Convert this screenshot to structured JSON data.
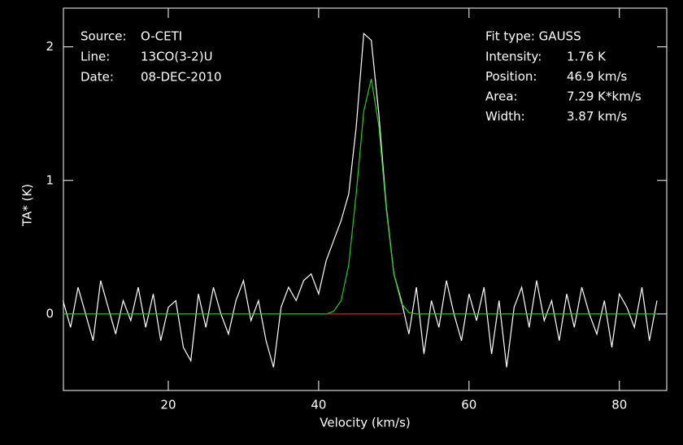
{
  "chart_data": {
    "type": "line",
    "xlabel": "Velocity (km/s)",
    "ylabel": "TA* (K)",
    "annotations_left": [
      [
        "Source:",
        "O-CETI"
      ],
      [
        "Line:",
        "13CO(3-2)U"
      ],
      [
        "Date:",
        "08-DEC-2010"
      ]
    ],
    "annotations_right_title": "Fit type: GAUSS",
    "annotations_right": [
      [
        "Intensity:",
        "1.76 K"
      ],
      [
        "Position:",
        "46.9 km/s"
      ],
      [
        "Area:",
        "7.29 K*km/s"
      ],
      [
        "Width:",
        "3.87 km/s"
      ]
    ],
    "xlim": [
      6.05,
      86.3
    ],
    "ylim": [
      -0.573,
      2.29
    ],
    "xticks": [
      20,
      40,
      60,
      80
    ],
    "yticks": [
      0,
      1,
      2
    ],
    "series": [
      {
        "color": "#ffffff",
        "x": [
          6,
          7,
          8,
          9,
          10,
          11,
          12,
          13,
          14,
          15,
          16,
          17,
          18,
          19,
          20,
          21,
          22,
          23,
          24,
          25,
          26,
          27,
          28,
          29,
          30,
          31,
          32,
          33,
          34,
          35,
          36,
          37,
          38,
          39,
          40,
          41,
          42,
          43,
          44,
          45,
          46,
          47,
          48,
          49,
          50,
          51,
          52,
          53,
          54,
          55,
          56,
          57,
          58,
          59,
          60,
          61,
          62,
          63,
          64,
          65,
          66,
          67,
          68,
          69,
          70,
          71,
          72,
          73,
          74,
          75,
          76,
          77,
          78,
          79,
          80,
          81,
          82,
          83,
          84,
          85
        ],
        "values": [
          0.1,
          -0.1,
          0.2,
          0.0,
          -0.2,
          0.25,
          0.05,
          -0.15,
          0.1,
          -0.05,
          0.2,
          -0.1,
          0.15,
          -0.2,
          0.05,
          0.1,
          -0.25,
          -0.35,
          0.15,
          -0.1,
          0.2,
          0.0,
          -0.15,
          0.1,
          0.25,
          -0.05,
          0.1,
          -0.2,
          -0.4,
          0.05,
          0.2,
          0.1,
          0.25,
          0.3,
          0.15,
          0.4,
          0.55,
          0.7,
          0.9,
          1.4,
          2.1,
          2.05,
          1.5,
          0.8,
          0.3,
          0.1,
          -0.15,
          0.2,
          -0.3,
          0.1,
          -0.1,
          0.25,
          0.0,
          -0.2,
          0.15,
          -0.05,
          0.2,
          -0.3,
          0.1,
          -0.4,
          0.05,
          0.2,
          -0.1,
          0.25,
          -0.05,
          0.1,
          -0.2,
          0.15,
          -0.1,
          0.2,
          0.0,
          -0.15,
          0.1,
          -0.25,
          0.15,
          0.05,
          -0.1,
          0.2,
          -0.2,
          0.1
        ]
      },
      {
        "color": "#22cc22",
        "x": [
          6,
          41,
          42,
          43,
          44,
          45,
          46,
          47,
          48,
          49,
          50,
          51,
          52,
          53,
          85
        ],
        "values": [
          0,
          0,
          0.02,
          0.1,
          0.37,
          0.9,
          1.52,
          1.76,
          1.41,
          0.78,
          0.3,
          0.08,
          0.01,
          0,
          0
        ]
      },
      {
        "color": "#dd2222",
        "x": [
          41,
          51
        ],
        "values": [
          0,
          0
        ]
      }
    ]
  }
}
